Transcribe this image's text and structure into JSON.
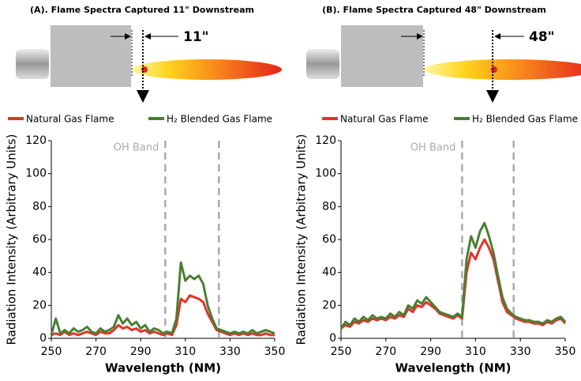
{
  "chart_data": [
    {
      "type": "line",
      "title": "(A). Flame Spectra Captured 11\" Downstream",
      "distance_label": "11\"",
      "xlabel": "Wavelength (NM)",
      "ylabel": "Radiation Intensity (Arbitrary Units)",
      "annotation": "OH Band",
      "bands": [
        301,
        325
      ],
      "xlim": [
        250,
        350
      ],
      "ylim": [
        0,
        120
      ],
      "xticks": [
        250,
        270,
        290,
        310,
        330,
        350
      ],
      "yticks": [
        0,
        20,
        40,
        60,
        80,
        100,
        120
      ],
      "x": [
        250,
        252,
        254,
        256,
        258,
        260,
        262,
        264,
        266,
        268,
        270,
        272,
        274,
        276,
        278,
        280,
        282,
        284,
        286,
        288,
        290,
        292,
        294,
        296,
        298,
        300,
        302,
        304,
        306,
        308,
        310,
        312,
        314,
        316,
        318,
        320,
        322,
        324,
        326,
        328,
        330,
        332,
        334,
        336,
        338,
        340,
        342,
        344,
        346,
        348,
        350
      ],
      "series": [
        {
          "name": "Natural Gas Flame",
          "color": "#e2342b",
          "values": [
            2,
            3,
            2,
            4,
            2,
            3,
            2,
            3,
            4,
            3,
            2,
            4,
            3,
            3,
            5,
            8,
            6,
            7,
            5,
            6,
            4,
            5,
            3,
            4,
            3,
            2,
            3,
            2,
            8,
            24,
            22,
            26,
            25,
            24,
            22,
            15,
            10,
            5,
            4,
            3,
            2,
            3,
            2,
            3,
            2,
            3,
            2,
            2,
            3,
            2,
            2
          ]
        },
        {
          "name": "H₂ Blended Gas Flame",
          "color": "#4a7f33",
          "values": [
            2,
            12,
            3,
            5,
            3,
            6,
            4,
            5,
            7,
            4,
            3,
            6,
            4,
            5,
            7,
            14,
            9,
            12,
            8,
            10,
            6,
            8,
            4,
            6,
            5,
            3,
            4,
            3,
            12,
            46,
            35,
            38,
            36,
            38,
            33,
            20,
            12,
            6,
            5,
            4,
            3,
            4,
            3,
            4,
            3,
            5,
            3,
            4,
            5,
            4,
            3
          ]
        }
      ]
    },
    {
      "type": "line",
      "title": "(B). Flame Spectra Captured 48\" Downstream",
      "distance_label": "48\"",
      "xlabel": "Wavelength (NM)",
      "ylabel": "Radiation Intensity (Arbitrary Units)",
      "annotation": "OH Band",
      "bands": [
        304,
        327
      ],
      "xlim": [
        250,
        350
      ],
      "ylim": [
        0,
        120
      ],
      "xticks": [
        250,
        270,
        290,
        310,
        330,
        350
      ],
      "yticks": [
        0,
        20,
        40,
        60,
        80,
        100,
        120
      ],
      "x": [
        250,
        252,
        254,
        256,
        258,
        260,
        262,
        264,
        266,
        268,
        270,
        272,
        274,
        276,
        278,
        280,
        282,
        284,
        286,
        288,
        290,
        292,
        294,
        296,
        298,
        300,
        302,
        304,
        306,
        308,
        310,
        312,
        314,
        316,
        318,
        320,
        322,
        324,
        326,
        328,
        330,
        332,
        334,
        336,
        338,
        340,
        342,
        344,
        346,
        348,
        350
      ],
      "series": [
        {
          "name": "Natural Gas Flame",
          "color": "#e2342b",
          "values": [
            6,
            8,
            7,
            10,
            9,
            11,
            10,
            12,
            11,
            12,
            11,
            13,
            12,
            14,
            13,
            18,
            16,
            20,
            19,
            22,
            20,
            18,
            15,
            14,
            13,
            12,
            14,
            12,
            40,
            52,
            48,
            55,
            60,
            55,
            48,
            35,
            22,
            16,
            14,
            12,
            11,
            10,
            10,
            9,
            9,
            8,
            10,
            9,
            11,
            12,
            9
          ]
        },
        {
          "name": "H₂ Blended Gas Flame",
          "color": "#4a7f33",
          "values": [
            6,
            10,
            8,
            12,
            10,
            13,
            11,
            14,
            12,
            13,
            12,
            15,
            13,
            16,
            14,
            20,
            18,
            23,
            21,
            25,
            22,
            19,
            16,
            15,
            14,
            13,
            15,
            13,
            48,
            62,
            55,
            65,
            70,
            62,
            52,
            38,
            25,
            18,
            15,
            13,
            12,
            11,
            11,
            10,
            10,
            9,
            11,
            10,
            12,
            13,
            10
          ]
        }
      ]
    }
  ]
}
